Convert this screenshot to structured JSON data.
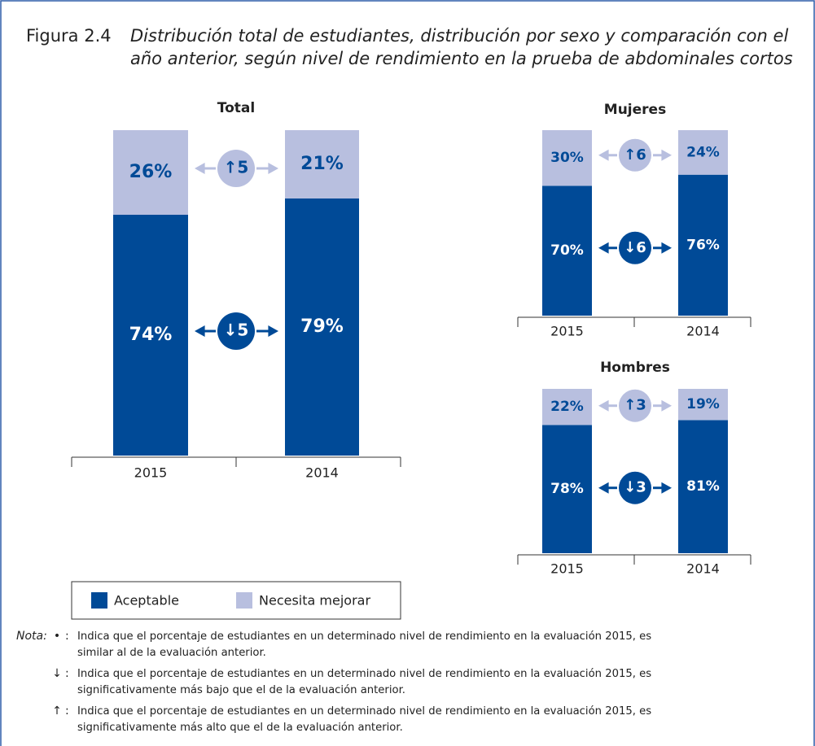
{
  "figure": {
    "number": "Figura 2.4",
    "title_lines": [
      "Distribución total de estudiantes, distribución por sexo y comparación con el",
      "año anterior, según nivel de rendimiento en la prueba de abdominales cortos"
    ]
  },
  "chart_data": [
    {
      "type": "stacked-bar",
      "title": "Total",
      "categories": [
        "2015",
        "2014"
      ],
      "ylim": [
        0,
        100
      ],
      "legend": true,
      "series": [
        {
          "name": "Aceptable",
          "color": "#004a97",
          "values": [
            74,
            79
          ],
          "value_labels": [
            "74%",
            "79%"
          ]
        },
        {
          "name": "Necesita mejorar",
          "color": "#b8bfdf",
          "values": [
            26,
            21
          ],
          "value_labels": [
            "26%",
            "21%"
          ]
        }
      ],
      "annotations": [
        "↓5",
        "↑5"
      ]
    },
    {
      "type": "stacked-bar",
      "title": "Mujeres",
      "categories": [
        "2015",
        "2014"
      ],
      "ylim": [
        0,
        100
      ],
      "legend": false,
      "series": [
        {
          "color": "#004a97",
          "values": [
            70,
            76
          ],
          "value_labels": [
            "70%",
            "76%"
          ]
        },
        {
          "color": "#b8bfdf",
          "values": [
            30,
            24
          ],
          "value_labels": [
            "30%",
            "24%"
          ]
        }
      ],
      "annotations": [
        "↓6",
        "↑6"
      ]
    },
    {
      "type": "stacked-bar",
      "title": "Hombres",
      "categories": [
        "2015",
        "2014"
      ],
      "ylim": [
        0,
        100
      ],
      "legend": false,
      "series": [
        {
          "color": "#004a97",
          "values": [
            78,
            81
          ],
          "value_labels": [
            "78%",
            "81%"
          ]
        },
        {
          "color": "#b8bfdf",
          "values": [
            22,
            19
          ],
          "value_labels": [
            "22%",
            "19%"
          ]
        }
      ],
      "annotations": [
        "↓3",
        "↑3"
      ]
    }
  ],
  "notes": {
    "label": "Nota:",
    "items": [
      {
        "symbol": "•",
        "lines": [
          "Indica que el porcentaje de estudiantes en un determinado nivel de rendimiento en la evaluación 2015, es",
          "similar al de la evaluación anterior."
        ]
      },
      {
        "symbol": "↓",
        "lines": [
          "Indica que el porcentaje de estudiantes en un determinado nivel de rendimiento en la evaluación 2015, es",
          "significativamente más bajo que el de la evaluación anterior."
        ]
      },
      {
        "symbol": "↑",
        "lines": [
          "Indica que el porcentaje de estudiantes en un determinado nivel de rendimiento en la evaluación 2015, es",
          "significativamente más alto que el de la evaluación anterior."
        ]
      }
    ]
  }
}
